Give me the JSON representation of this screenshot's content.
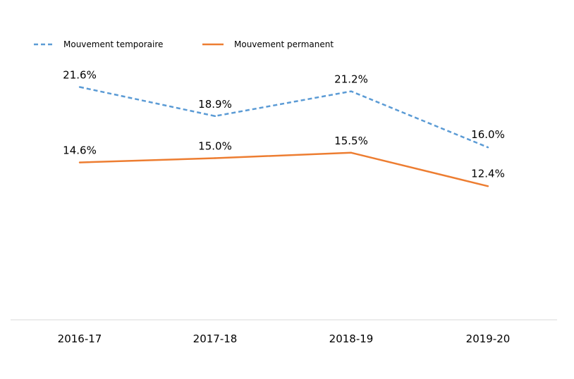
{
  "chart_data": {
    "type": "line",
    "title": "",
    "xlabel": "",
    "ylabel": "",
    "categories": [
      "2016-17",
      "2017-18",
      "2018-19",
      "2019-20"
    ],
    "ylim": [
      0,
      0.28
    ],
    "grid": false,
    "legend_position": "top-left",
    "series": [
      {
        "name": "Mouvement temporaire",
        "values": [
          0.216,
          0.189,
          0.212,
          0.16
        ],
        "labels": [
          "21.6%",
          "18.9%",
          "21.2%",
          "16.0%"
        ],
        "color": "#5B9BD5",
        "line_style": "dashed"
      },
      {
        "name": "Mouvement permanent",
        "values": [
          0.146,
          0.15,
          0.155,
          0.124
        ],
        "labels": [
          "14.6%",
          "15.0%",
          "15.5%",
          "12.4%"
        ],
        "color": "#ED7D31",
        "line_style": "solid"
      }
    ],
    "axis_color": "#D9D9D9"
  }
}
